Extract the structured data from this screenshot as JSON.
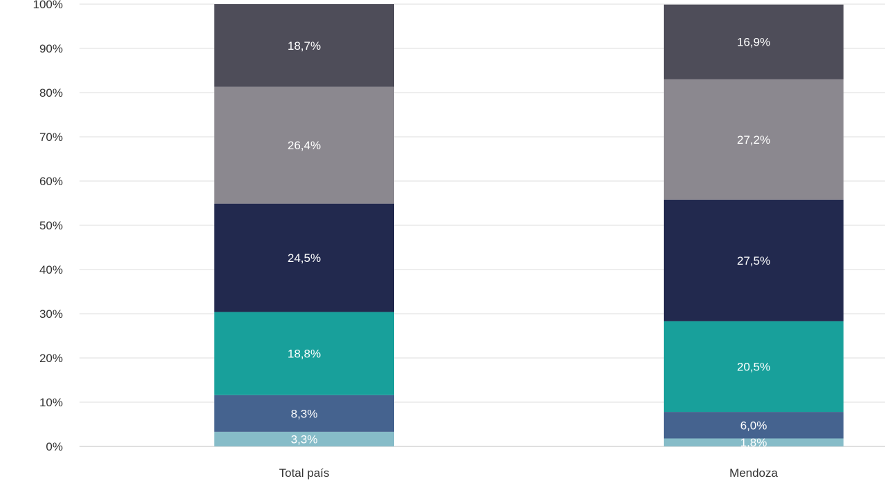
{
  "chart_data": {
    "type": "bar",
    "stacked": true,
    "categories": [
      "Total país",
      "Mendoza"
    ],
    "series": [
      {
        "values": [
          3.3,
          1.8
        ],
        "labels": [
          "3,3%",
          "1,8%"
        ],
        "color": "#86bcc8"
      },
      {
        "values": [
          8.3,
          6.0
        ],
        "labels": [
          "8,3%",
          "6,0%"
        ],
        "color": "#45638f"
      },
      {
        "values": [
          18.8,
          20.5
        ],
        "labels": [
          "18,8%",
          "20,5%"
        ],
        "color": "#18a09b"
      },
      {
        "values": [
          24.5,
          27.5
        ],
        "labels": [
          "24,5%",
          "27,5%"
        ],
        "color": "#22294e"
      },
      {
        "values": [
          26.4,
          27.2
        ],
        "labels": [
          "26,4%",
          "27,2%"
        ],
        "color": "#8b888f"
      },
      {
        "values": [
          18.7,
          16.9
        ],
        "labels": [
          "18,7%",
          "16,9%"
        ],
        "color": "#4e4d59"
      }
    ],
    "ylim": [
      0,
      100
    ],
    "yticks": [
      "0%",
      "10%",
      "20%",
      "30%",
      "40%",
      "50%",
      "60%",
      "70%",
      "80%",
      "90%",
      "100%"
    ],
    "grid": true,
    "legend": false,
    "title": "",
    "xlabel": "",
    "ylabel": ""
  }
}
